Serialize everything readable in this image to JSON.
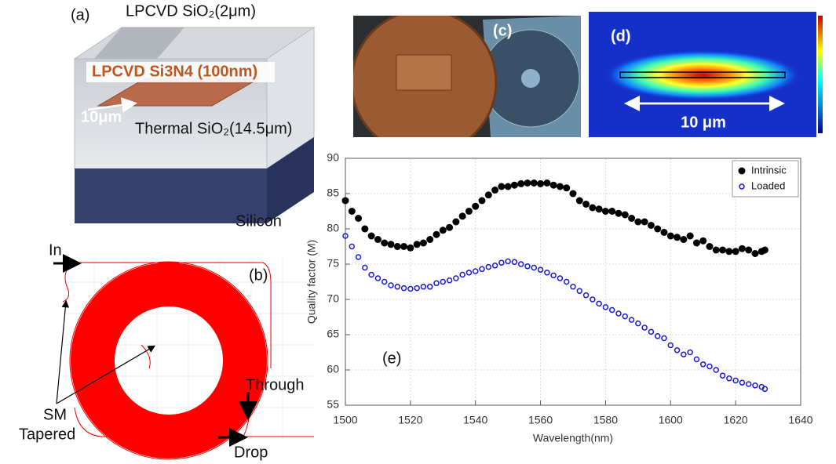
{
  "panels": {
    "a": {
      "label": "(a)",
      "top_layer": "LPCVD SiO₂(2μm)",
      "core": "LPCVD Si3N4 (100nm)",
      "width": "10μm",
      "cladding": "Thermal SiO₂(14.5μm)",
      "substrate": "Silicon"
    },
    "b": {
      "label": "(b)",
      "input": "In",
      "through": "Through",
      "drop": "Drop",
      "taper": [
        "SM",
        "Tapered"
      ]
    },
    "c": {
      "label": "(c)"
    },
    "d": {
      "label": "(d)",
      "scale": "10 μm"
    }
  },
  "chart_data": {
    "type": "scatter",
    "annotation": "(e)",
    "x_label": "Wavelength(nm)",
    "y_label": "Quality factor (M)",
    "x": [
      1500,
      1502,
      1504,
      1506,
      1508,
      1510,
      1512,
      1514,
      1516,
      1518,
      1520,
      1522,
      1524,
      1526,
      1528,
      1530,
      1532,
      1534,
      1536,
      1538,
      1540,
      1542,
      1544,
      1546,
      1548,
      1550,
      1552,
      1554,
      1556,
      1558,
      1560,
      1562,
      1564,
      1566,
      1568,
      1570,
      1572,
      1574,
      1576,
      1578,
      1580,
      1582,
      1584,
      1586,
      1588,
      1590,
      1592,
      1594,
      1596,
      1598,
      1600,
      1602,
      1604,
      1606,
      1608,
      1610,
      1612,
      1614,
      1616,
      1618,
      1620,
      1622,
      1624,
      1626,
      1628,
      1629
    ],
    "series": [
      {
        "name": "Intrinsic",
        "color": "#000000",
        "marker": "filled",
        "values": [
          84,
          82.5,
          81.5,
          80,
          79,
          78.5,
          78,
          77.8,
          77.5,
          77.5,
          77.3,
          77.8,
          78,
          78.5,
          79.2,
          79.8,
          80.2,
          81,
          81.8,
          82.5,
          83.2,
          84,
          84.8,
          85.5,
          86,
          86,
          86.2,
          86.4,
          86.5,
          86.5,
          86.4,
          86.5,
          86.2,
          86,
          85.8,
          85,
          84,
          83.5,
          83,
          82.8,
          82.5,
          82.5,
          82.2,
          82,
          81.5,
          81,
          81,
          80.5,
          80,
          79.5,
          79,
          78.8,
          78.5,
          79,
          78,
          78.3,
          77.5,
          77,
          77,
          76.8,
          76.8,
          77.2,
          77,
          76.5,
          76.8,
          77
        ]
      },
      {
        "name": "Loaded",
        "color": "#1a1ad6",
        "marker": "hollow",
        "values": [
          79,
          77.5,
          76,
          74.5,
          73.5,
          73,
          72.5,
          72,
          71.8,
          71.6,
          71.5,
          71.6,
          71.8,
          71.8,
          72.3,
          72.5,
          72.7,
          73,
          73.5,
          73.8,
          74,
          74.3,
          74.6,
          74.8,
          75.2,
          75.4,
          75.3,
          75,
          74.7,
          74.5,
          74.2,
          73.8,
          73.4,
          73,
          72.5,
          71.8,
          71.2,
          70.6,
          70,
          69.4,
          68.9,
          68.5,
          68,
          67.6,
          67.1,
          66.6,
          66,
          65.4,
          64.8,
          64.5,
          63.5,
          62.8,
          62.2,
          62.5,
          61.5,
          60.8,
          60.5,
          60,
          59.2,
          58.8,
          58.5,
          58.2,
          58,
          57.8,
          57.6,
          57.3
        ]
      }
    ],
    "xlim": [
      1500,
      1640
    ],
    "xticks": [
      1500,
      1520,
      1540,
      1560,
      1580,
      1600,
      1620,
      1640
    ],
    "ylim": [
      55,
      90
    ],
    "yticks": [
      55,
      60,
      65,
      70,
      75,
      80,
      85,
      90
    ],
    "grid": true,
    "legend": "upper right"
  }
}
